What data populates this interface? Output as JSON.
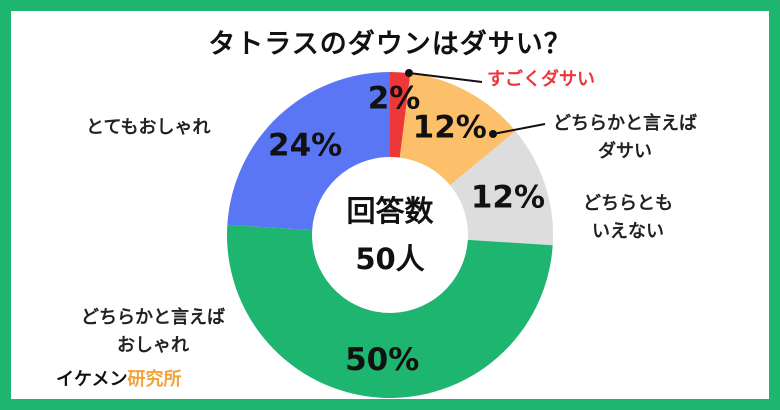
{
  "title": "タトラスのダウンはダサい？",
  "chart_data": {
    "type": "pie",
    "variant": "donut",
    "center_label": [
      "回答数",
      "50人"
    ],
    "slices": [
      {
        "label": "すごくダサい",
        "value": 2,
        "pct_label": "2%",
        "color": "#ee3838"
      },
      {
        "label": "どちらかと言えばダサい",
        "value": 12,
        "pct_label": "12%",
        "color": "#fcc06a"
      },
      {
        "label": "どちらともいえない",
        "value": 12,
        "pct_label": "12%",
        "color": "#dddddd"
      },
      {
        "label": "どちらかと言えばおしゃれ",
        "value": 50,
        "pct_label": "50%",
        "color": "#1db56f"
      },
      {
        "label": "とてもおしゃれ",
        "value": 24,
        "pct_label": "24%",
        "color": "#5b76f4"
      }
    ]
  },
  "labels": {
    "very_dasai": "すごくダサい",
    "somewhat_dasai_1": "どちらかと言えば",
    "somewhat_dasai_2": "ダサい",
    "neutral_1": "どちらとも",
    "neutral_2": "いえない",
    "somewhat_oshare_1": "どちらかと言えば",
    "somewhat_oshare_2": "おしゃれ",
    "very_oshare": "とてもおしゃれ"
  },
  "brand": {
    "part1": "イケメン",
    "part2": "研究所"
  },
  "colors": {
    "frame": "#1db56f",
    "highlight": "#e8383d",
    "brand_accent": "#f2a33a"
  }
}
